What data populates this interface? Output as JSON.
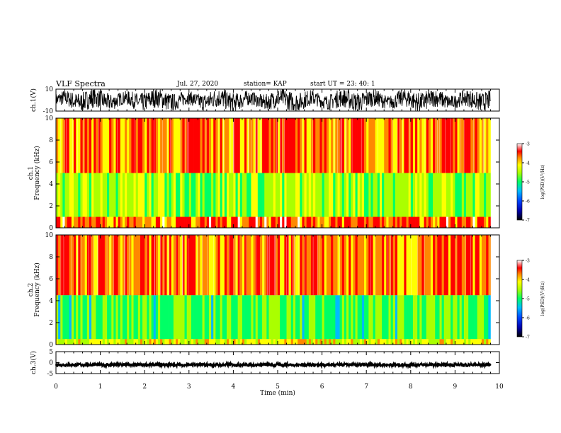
{
  "header": {
    "title": "VLF Spectra",
    "date": "Jul. 27, 2020",
    "station": "station= KAP",
    "start": "start  UT =   23: 40: 1"
  },
  "colorbar": {
    "label": "log(PSD)(V²/Hz)",
    "ticks": [
      "-3",
      "-4",
      "-5",
      "-6",
      "-7"
    ],
    "range": [
      -7,
      -3
    ]
  },
  "chart_data": [
    {
      "type": "line",
      "panel": "waveform ch.1",
      "ylabel": "ch.1(V)",
      "ylim": [
        -10,
        10
      ],
      "yticks": [
        "10",
        "-10"
      ],
      "xlim": [
        0,
        10
      ],
      "description_of_values": "dense oscillating trace within about -10 to 10 V"
    },
    {
      "type": "heatmap",
      "panel": "spectrogram ch.1",
      "ylabel": "ch.1\nFrequency (kHz)",
      "ylim": [
        0,
        10
      ],
      "yticks": [
        "10",
        "8",
        "6",
        "4",
        "2",
        "0"
      ],
      "xlim": [
        0,
        9.8
      ],
      "bands_khz": [
        {
          "from": 5,
          "to": 10,
          "level": -3.5
        },
        {
          "from": 1,
          "to": 5,
          "level": -4.3
        },
        {
          "from": 0,
          "to": 1,
          "level": -3.4
        }
      ]
    },
    {
      "type": "heatmap",
      "panel": "spectrogram ch.2",
      "ylabel": "ch.2\nFrequency (kHz)",
      "ylim": [
        0,
        10
      ],
      "yticks": [
        "10",
        "8",
        "6",
        "4",
        "2",
        "0"
      ],
      "xlim": [
        0,
        9.8
      ],
      "bands_khz": [
        {
          "from": 4.5,
          "to": 10,
          "level": -3.5
        },
        {
          "from": 0.5,
          "to": 4.5,
          "level": -4.6
        },
        {
          "from": 0,
          "to": 0.5,
          "level": -4.0
        }
      ]
    },
    {
      "type": "line",
      "panel": "waveform ch.3",
      "ylabel": "ch.3(V)",
      "ylim": [
        -5,
        5
      ],
      "yticks": [
        "5",
        "0",
        "-5"
      ],
      "xlim": [
        0,
        10
      ],
      "description_of_values": "thin trace near -1 V"
    }
  ],
  "xaxis": {
    "label": "Time (min)",
    "ticks": [
      "0",
      "1",
      "2",
      "3",
      "4",
      "5",
      "6",
      "7",
      "8",
      "9",
      "10"
    ],
    "range": [
      0,
      10
    ]
  }
}
